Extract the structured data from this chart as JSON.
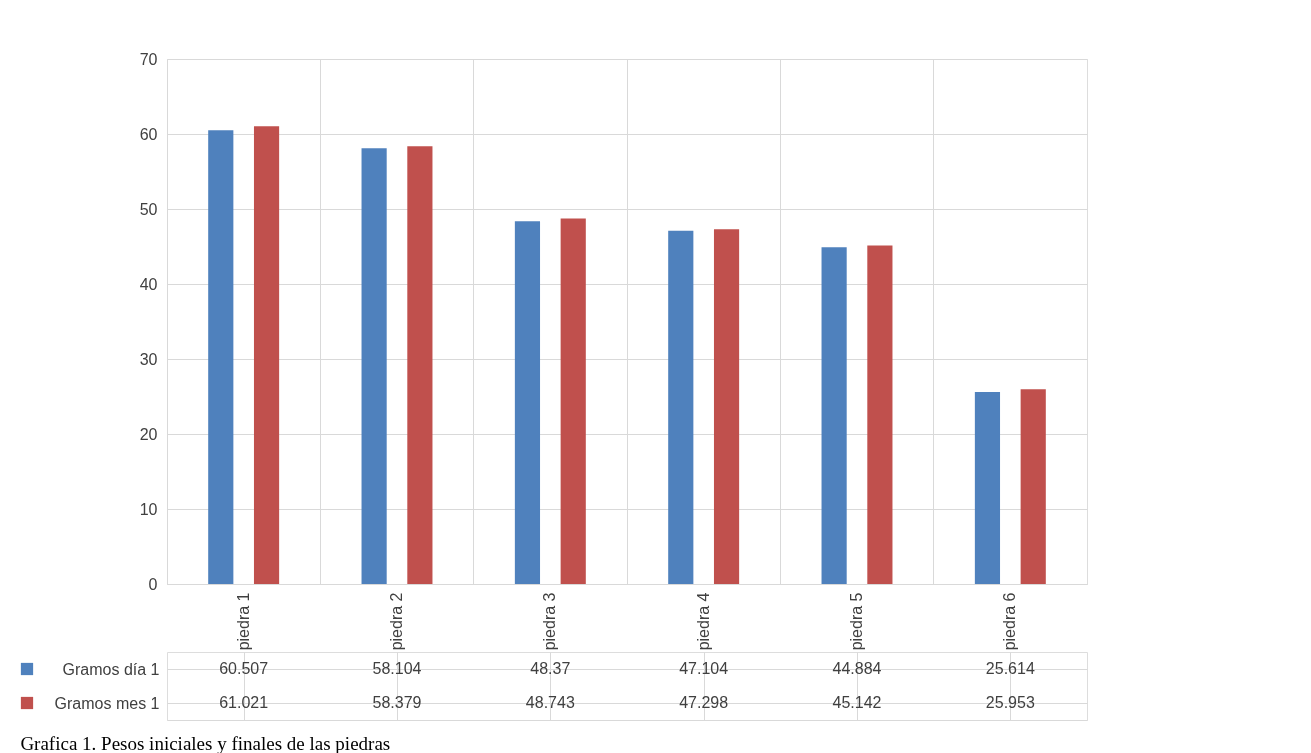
{
  "chart_data": {
    "type": "bar",
    "title": "Grafica 1. Pesos iniciales y finales de las piedras",
    "categories": [
      "piedra 1",
      "piedra 2",
      "piedra 3",
      "piedra 4",
      "piedra 5",
      "piedra 6"
    ],
    "series": [
      {
        "name": "Gramos día 1",
        "color": "#4f81bd",
        "values": [
          60.507,
          58.104,
          48.37,
          47.104,
          44.884,
          25.614
        ]
      },
      {
        "name": "Gramos mes 1",
        "color": "#c0504d",
        "values": [
          61.021,
          58.379,
          48.743,
          47.298,
          45.142,
          25.953
        ]
      }
    ],
    "ylim": [
      0,
      70
    ],
    "yticks": [
      0,
      10,
      20,
      30,
      40,
      50,
      60,
      70
    ],
    "grid": true,
    "data_labels": true,
    "legend": "bottom"
  }
}
